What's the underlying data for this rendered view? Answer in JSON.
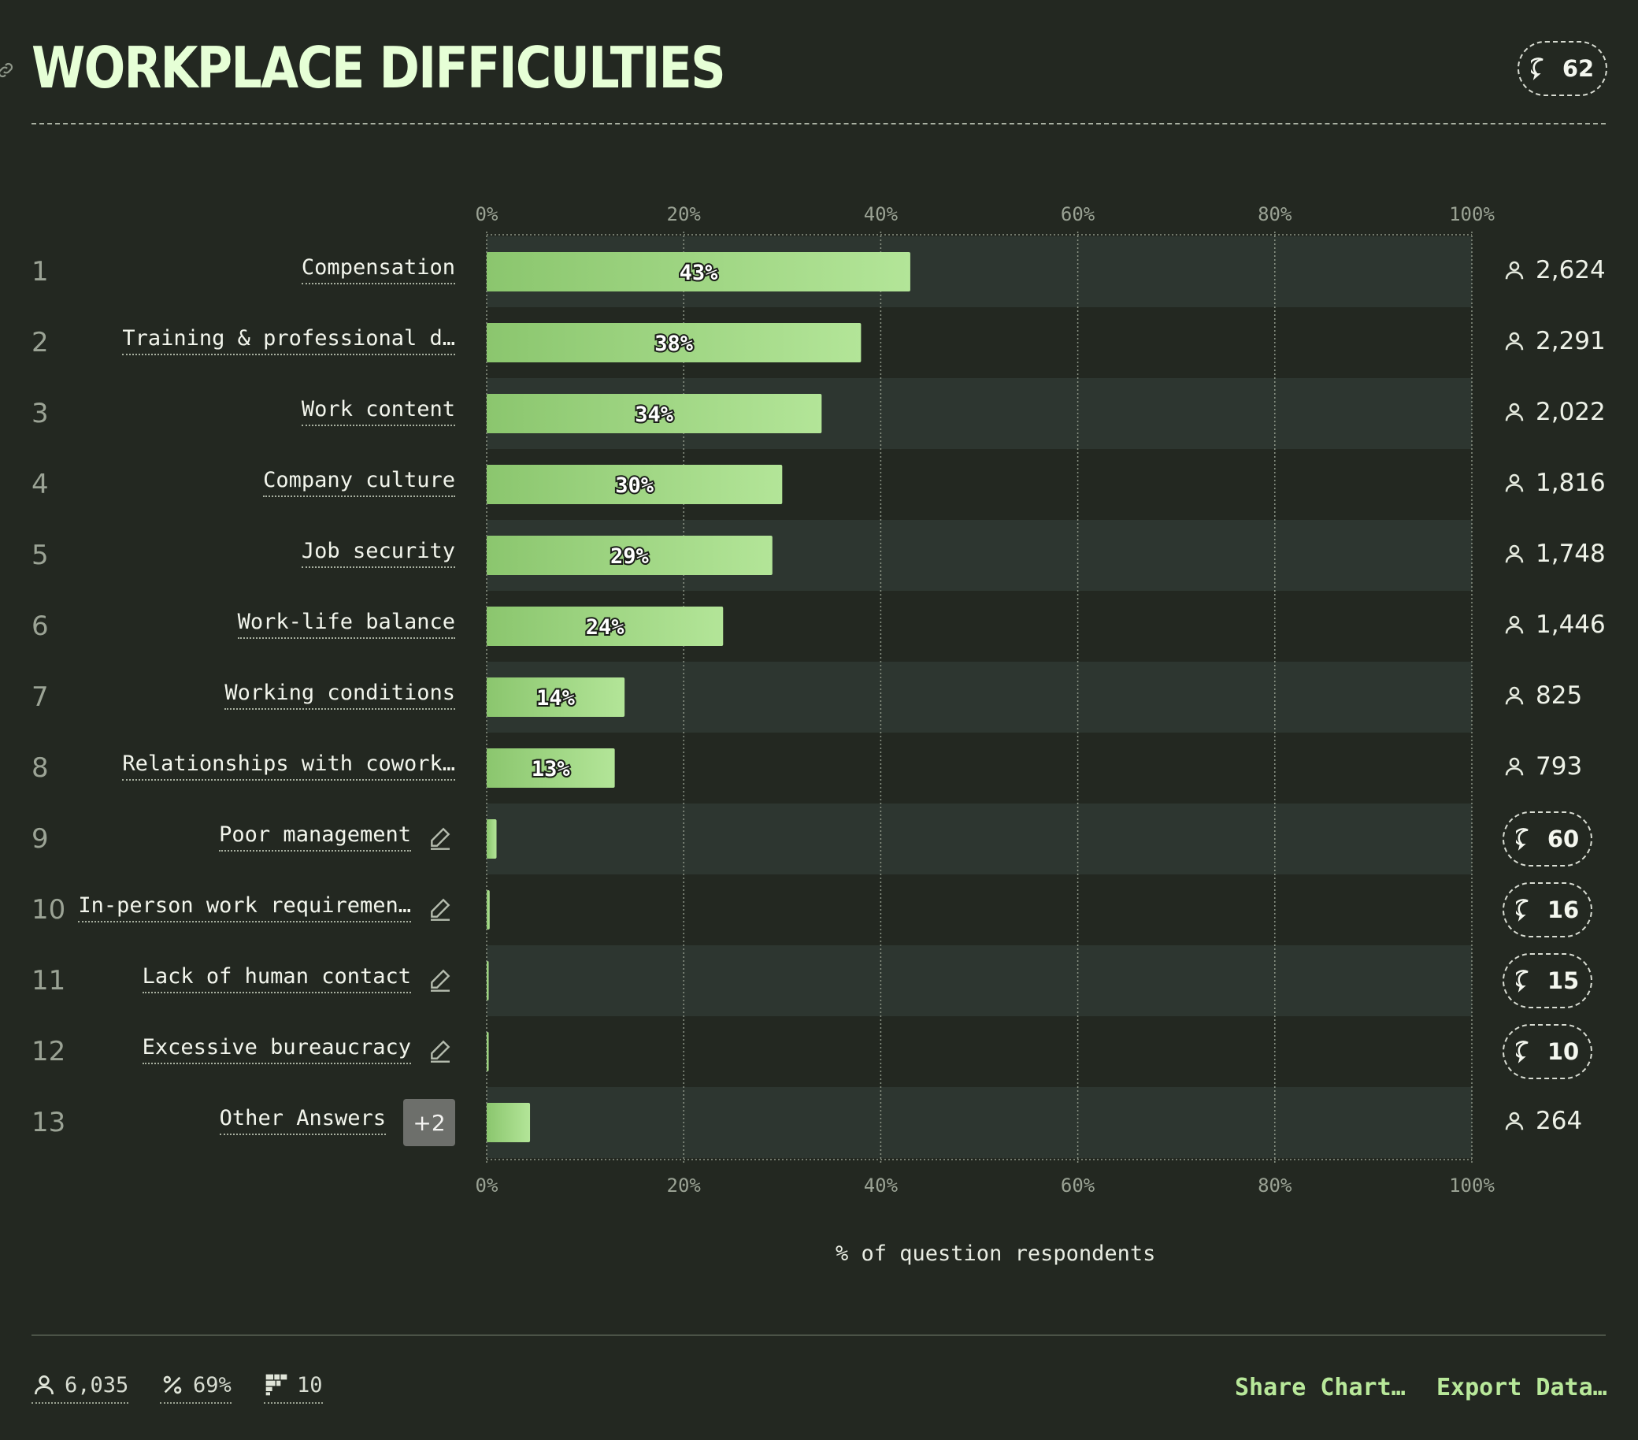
{
  "header": {
    "title": "WORKPLACE DIFFICULTIES",
    "comment_count": "62"
  },
  "chart_data": {
    "type": "bar",
    "orientation": "horizontal",
    "categories": [
      "Compensation",
      "Training & professional d…",
      "Work content",
      "Company culture",
      "Job security",
      "Work-life balance",
      "Working conditions",
      "Relationships with cowork…",
      "Poor management",
      "In-person work requiremen…",
      "Lack of human contact",
      "Excessive bureaucracy",
      "Other Answers"
    ],
    "values": [
      43,
      38,
      34,
      30,
      29,
      24,
      14,
      13,
      1,
      0.3,
      0.2,
      0.2,
      4.4
    ],
    "value_labels": [
      "43%",
      "38%",
      "34%",
      "30%",
      "29%",
      "24%",
      "14%",
      "13%",
      "",
      "",
      "",
      "",
      ""
    ],
    "ranks": [
      "1",
      "2",
      "3",
      "4",
      "5",
      "6",
      "7",
      "8",
      "9",
      "10",
      "11",
      "12",
      "13"
    ],
    "respondents": [
      "2,624",
      "2,291",
      "2,022",
      "1,816",
      "1,748",
      "1,446",
      "825",
      "793",
      "",
      "",
      "",
      "",
      "264"
    ],
    "comments": [
      "",
      "",
      "",
      "",
      "",
      "",
      "",
      "",
      "60",
      "16",
      "15",
      "10",
      ""
    ],
    "editable": [
      false,
      false,
      false,
      false,
      false,
      false,
      false,
      false,
      true,
      true,
      true,
      true,
      false
    ],
    "other_extra": "+2",
    "xlim": [
      0,
      100
    ],
    "xticks": [
      "0%",
      "20%",
      "40%",
      "60%",
      "80%",
      "100%"
    ],
    "xlabel": "% of question respondents",
    "grid": true,
    "colors": {
      "bar_start": "#8bc66e",
      "bar_end": "#b3e598",
      "row_alt": "#2d3630",
      "bg": "#232821"
    }
  },
  "footer": {
    "respondents": "6,035",
    "percent": "69%",
    "questions": "10",
    "share_label": "Share Chart…",
    "export_label": "Export Data…"
  }
}
